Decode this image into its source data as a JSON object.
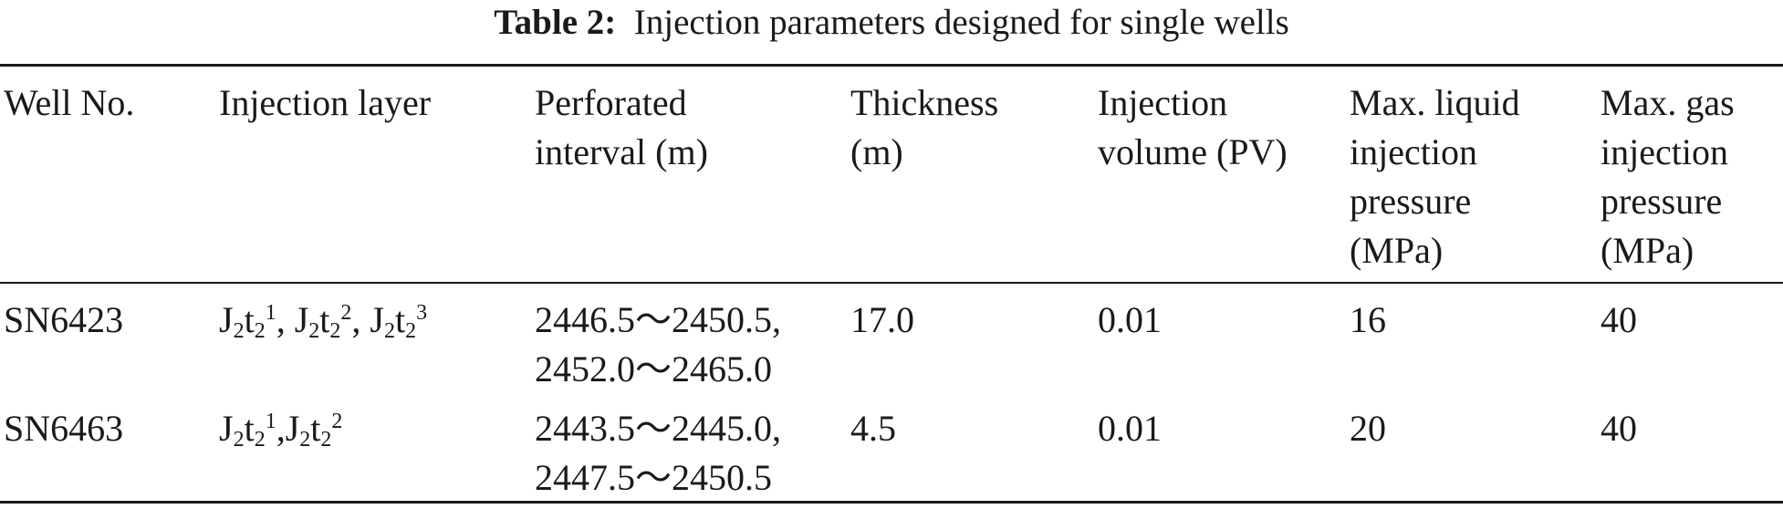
{
  "caption": {
    "label": "Table 2:",
    "text": "Injection parameters designed for single wells"
  },
  "table": {
    "headers": [
      "Well No.",
      "Injection layer",
      "Perforated\ninterval (m)",
      "Thickness\n(m)",
      "Injection\nvolume (PV)",
      "Max. liquid\ninjection\npressure\n(MPa)",
      "Max. gas\ninjection\npressure\n(MPa)"
    ],
    "rows": [
      {
        "well": "SN6423",
        "layers": [
          {
            "base": "J",
            "sub1": "2",
            "mid": "t",
            "sub2": "2",
            "sup": "1"
          },
          {
            "base": "J",
            "sub1": "2",
            "mid": "t",
            "sub2": "2",
            "sup": "2"
          },
          {
            "base": "J",
            "sub1": "2",
            "mid": "t",
            "sub2": "2",
            "sup": "3"
          }
        ],
        "layer_separator": ", ",
        "interval": "2446.5～2450.5,\n2452.0～2465.0",
        "thickness": "17.0",
        "volume": "0.01",
        "max_liquid": "16",
        "max_gas": "40"
      },
      {
        "well": "SN6463",
        "layers": [
          {
            "base": "J",
            "sub1": "2",
            "mid": "t",
            "sub2": "2",
            "sup": "1"
          },
          {
            "base": "J",
            "sub1": "2",
            "mid": "t",
            "sub2": "2",
            "sup": "2"
          }
        ],
        "layer_separator": ",",
        "interval": "2443.5～2445.0,\n2447.5～2450.5",
        "thickness": "4.5",
        "volume": "0.01",
        "max_liquid": "20",
        "max_gas": "40"
      }
    ]
  }
}
